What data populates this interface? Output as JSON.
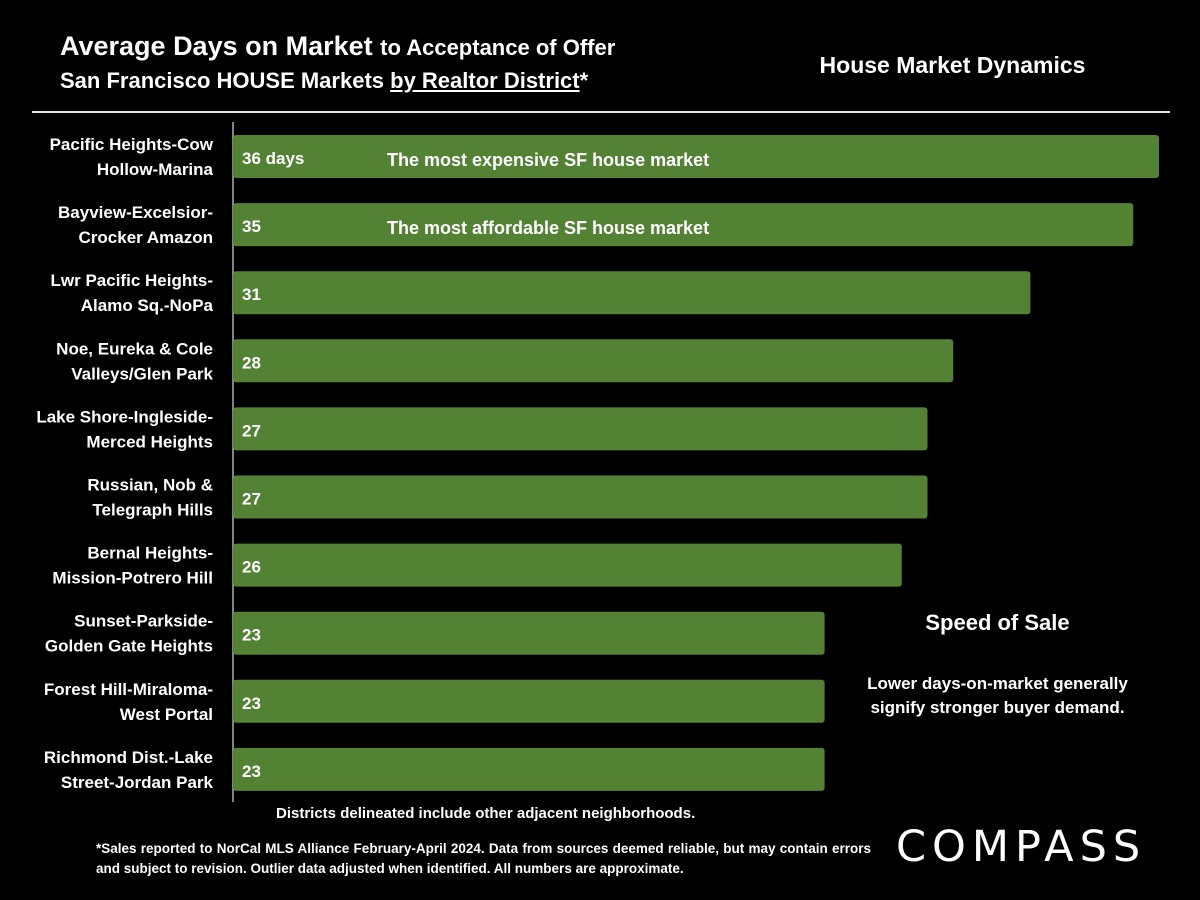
{
  "title": {
    "main": "Average Days on Market",
    "rest": "to Acceptance of Offer",
    "line2_prefix": "San Francisco HOUSE Markets ",
    "line2_underlined": "by Realtor District",
    "line2_suffix": "*"
  },
  "side_title": "House Market Dynamics",
  "speed_of_sale": {
    "title": "Speed of Sale",
    "text": "Lower days-on-market generally signify stronger buyer demand."
  },
  "districts_note": "Districts delineated include other adjacent neighborhoods.",
  "footnote": "*Sales reported to NorCal MLS Alliance February-April 2024. Data from sources deemed reliable, but may contain errors and subject to revision. Outlier data adjusted when identified. All numbers are approximate.",
  "logo": "COMPASS",
  "colors": {
    "bar": "#548235",
    "background": "#000000",
    "text": "#ffffff"
  },
  "chart_data": {
    "type": "bar",
    "orientation": "horizontal",
    "categories": [
      [
        "Pacific Heights-Cow",
        "Hollow-Marina"
      ],
      [
        "Bayview-Excelsior-",
        "Crocker Amazon"
      ],
      [
        "Lwr Pacific Heights-",
        "Alamo Sq.-NoPa"
      ],
      [
        "Noe, Eureka & Cole",
        "Valleys/Glen Park"
      ],
      [
        "Lake Shore-Ingleside-",
        "Merced Heights"
      ],
      [
        "Russian, Nob &",
        "Telegraph Hills"
      ],
      [
        "Bernal Heights-",
        "Mission-Potrero Hill"
      ],
      [
        "Sunset-Parkside-",
        "Golden Gate Heights"
      ],
      [
        "Forest Hill-Miraloma-",
        "West Portal"
      ],
      [
        "Richmond Dist.-Lake",
        "Street-Jordan Park"
      ]
    ],
    "values": [
      36,
      35,
      31,
      28,
      27,
      27,
      26,
      23,
      23,
      23
    ],
    "data_labels": [
      "36 days",
      "35",
      "31",
      "28",
      "27",
      "27",
      "26",
      "23",
      "23",
      "23"
    ],
    "annotations": [
      {
        "index": 0,
        "text": "The most expensive SF house market"
      },
      {
        "index": 1,
        "text": "The most affordable SF house market"
      }
    ],
    "xlim": [
      0,
      36
    ]
  }
}
